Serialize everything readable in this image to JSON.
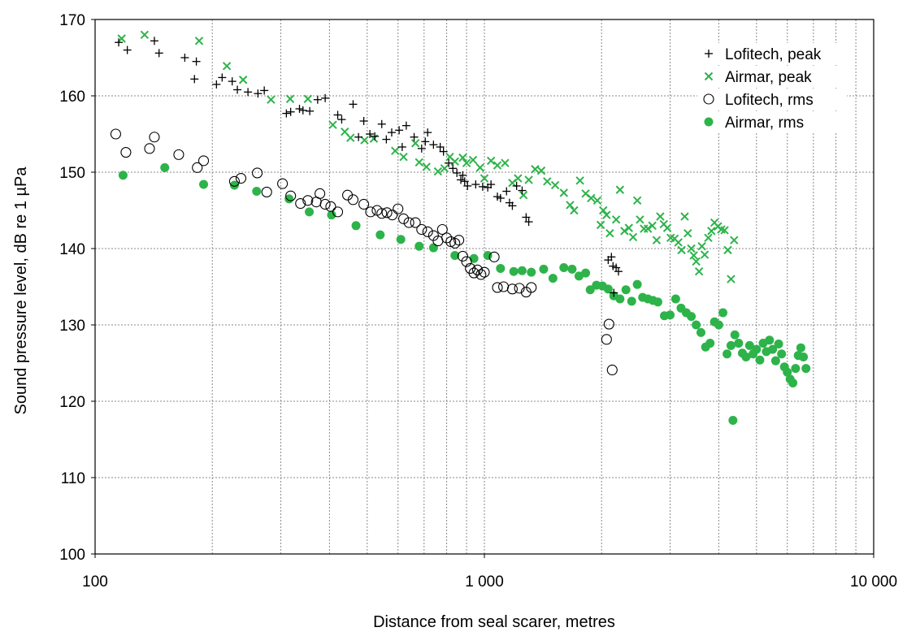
{
  "chart_data": {
    "type": "scatter",
    "xlabel": "Distance from seal scarer, metres",
    "ylabel": "Sound pressure level, dB re 1 µPa",
    "x_scale": "log",
    "xlim": [
      100,
      10000
    ],
    "ylim": [
      100,
      170
    ],
    "x_ticks": [
      100,
      1000,
      10000
    ],
    "x_tick_labels": [
      "100",
      "1 000",
      "10 000"
    ],
    "y_ticks": [
      100,
      110,
      120,
      130,
      140,
      150,
      160,
      170
    ],
    "y_tick_labels": [
      "100",
      "110",
      "120",
      "130",
      "140",
      "150",
      "160",
      "170"
    ],
    "grid": true,
    "legend_position": "top-right",
    "colors": {
      "green": "#2db34a",
      "black": "#000000"
    },
    "series": [
      {
        "name": "Lofitech, peak",
        "marker": "plus",
        "color": "#000000",
        "points": [
          [
            115,
            167
          ],
          [
            121,
            166
          ],
          [
            142,
            167.2
          ],
          [
            146,
            165.6
          ],
          [
            170,
            165
          ],
          [
            180,
            162.2
          ],
          [
            182,
            164.5
          ],
          [
            205,
            161.5
          ],
          [
            212,
            162.4
          ],
          [
            225,
            161.9
          ],
          [
            232,
            160.8
          ],
          [
            247,
            160.5
          ],
          [
            262,
            160.3
          ],
          [
            272,
            160.7
          ],
          [
            310,
            157.7
          ],
          [
            318,
            157.9
          ],
          [
            335,
            158.3
          ],
          [
            342,
            158.1
          ],
          [
            356,
            158.0
          ],
          [
            373,
            159.5
          ],
          [
            390,
            159.7
          ],
          [
            420,
            157.5
          ],
          [
            430,
            156.9
          ],
          [
            460,
            158.9
          ],
          [
            475,
            154.6
          ],
          [
            490,
            156.7
          ],
          [
            508,
            155.0
          ],
          [
            523,
            154.7
          ],
          [
            545,
            156.3
          ],
          [
            560,
            154.3
          ],
          [
            578,
            155.2
          ],
          [
            604,
            155.5
          ],
          [
            615,
            153.3
          ],
          [
            630,
            156.1
          ],
          [
            660,
            154.6
          ],
          [
            690,
            153.1
          ],
          [
            705,
            154.0
          ],
          [
            715,
            155.2
          ],
          [
            740,
            153.6
          ],
          [
            770,
            153.3
          ],
          [
            785,
            152.7
          ],
          [
            810,
            151.2
          ],
          [
            830,
            150.5
          ],
          [
            850,
            149.9
          ],
          [
            870,
            149.0
          ],
          [
            880,
            149.6
          ],
          [
            890,
            148.8
          ],
          [
            905,
            148.2
          ],
          [
            950,
            148.4
          ],
          [
            990,
            148.1
          ],
          [
            1020,
            148.0
          ],
          [
            1040,
            148.4
          ],
          [
            1080,
            146.8
          ],
          [
            1100,
            146.6
          ],
          [
            1140,
            147.5
          ],
          [
            1160,
            146.0
          ],
          [
            1180,
            145.6
          ],
          [
            1210,
            148.2
          ],
          [
            1250,
            147.6
          ],
          [
            1280,
            144.1
          ],
          [
            1300,
            143.5
          ],
          [
            2080,
            138.5
          ],
          [
            2120,
            138.9
          ],
          [
            2140,
            137.7
          ],
          [
            2180,
            137.5
          ],
          [
            2210,
            137.0
          ],
          [
            2150,
            134.2
          ]
        ]
      },
      {
        "name": "Airmar, peak",
        "marker": "x",
        "color": "#2db34a",
        "points": [
          [
            117,
            167.5
          ],
          [
            134,
            168
          ],
          [
            185,
            167.2
          ],
          [
            218,
            163.9
          ],
          [
            240,
            162.1
          ],
          [
            283,
            159.5
          ],
          [
            317,
            159.6
          ],
          [
            352,
            159.6
          ],
          [
            408,
            156.2
          ],
          [
            438,
            155.3
          ],
          [
            453,
            154.5
          ],
          [
            492,
            154.2
          ],
          [
            520,
            154.4
          ],
          [
            590,
            152.8
          ],
          [
            620,
            152.0
          ],
          [
            665,
            153.8
          ],
          [
            680,
            151.3
          ],
          [
            710,
            150.7
          ],
          [
            760,
            150.1
          ],
          [
            790,
            150.5
          ],
          [
            815,
            152.0
          ],
          [
            840,
            151.4
          ],
          [
            880,
            151.9
          ],
          [
            900,
            151.2
          ],
          [
            935,
            151.6
          ],
          [
            975,
            150.6
          ],
          [
            1000,
            149.2
          ],
          [
            1040,
            151.5
          ],
          [
            1080,
            150.9
          ],
          [
            1130,
            151.2
          ],
          [
            1180,
            148.6
          ],
          [
            1220,
            149.2
          ],
          [
            1260,
            147.0
          ],
          [
            1300,
            149.0
          ],
          [
            1350,
            150.4
          ],
          [
            1400,
            150.2
          ],
          [
            1450,
            148.8
          ],
          [
            1520,
            148.3
          ],
          [
            1600,
            147.3
          ],
          [
            1660,
            145.7
          ],
          [
            1700,
            145.0
          ],
          [
            1760,
            148.9
          ],
          [
            1820,
            147.2
          ],
          [
            1880,
            146.6
          ],
          [
            1950,
            146.3
          ],
          [
            1990,
            143.1
          ],
          [
            2020,
            145.0
          ],
          [
            2060,
            144.4
          ],
          [
            2100,
            142.0
          ],
          [
            2180,
            143.8
          ],
          [
            2230,
            147.7
          ],
          [
            2290,
            142.3
          ],
          [
            2350,
            142.7
          ],
          [
            2410,
            141.5
          ],
          [
            2470,
            146.3
          ],
          [
            2510,
            143.8
          ],
          [
            2570,
            142.6
          ],
          [
            2630,
            142.6
          ],
          [
            2700,
            143.0
          ],
          [
            2770,
            141.1
          ],
          [
            2830,
            144.2
          ],
          [
            2890,
            143.2
          ],
          [
            2950,
            142.7
          ],
          [
            3010,
            141.4
          ],
          [
            3080,
            141.3
          ],
          [
            3150,
            140.8
          ],
          [
            3210,
            139.8
          ],
          [
            3270,
            144.2
          ],
          [
            3330,
            142.0
          ],
          [
            3400,
            140.0
          ],
          [
            3450,
            139.1
          ],
          [
            3500,
            138.3
          ],
          [
            3560,
            137.0
          ],
          [
            3620,
            140.3
          ],
          [
            3680,
            139.2
          ],
          [
            3760,
            141.4
          ],
          [
            3830,
            142.3
          ],
          [
            3900,
            143.4
          ],
          [
            3980,
            142.9
          ],
          [
            4060,
            142.5
          ],
          [
            4140,
            142.4
          ],
          [
            4220,
            139.8
          ],
          [
            4300,
            136.0
          ],
          [
            4380,
            141.1
          ]
        ]
      },
      {
        "name": "Lofitech, rms",
        "marker": "circle-open",
        "color": "#000000",
        "points": [
          [
            113,
            155
          ],
          [
            120,
            152.6
          ],
          [
            138,
            153.1
          ],
          [
            142,
            154.6
          ],
          [
            164,
            152.3
          ],
          [
            183,
            150.6
          ],
          [
            190,
            151.5
          ],
          [
            228,
            148.8
          ],
          [
            237,
            149.2
          ],
          [
            261,
            149.9
          ],
          [
            276,
            147.4
          ],
          [
            303,
            148.5
          ],
          [
            318,
            146.9
          ],
          [
            337,
            145.9
          ],
          [
            352,
            146.3
          ],
          [
            370,
            146.1
          ],
          [
            378,
            147.2
          ],
          [
            390,
            145.8
          ],
          [
            403,
            145.5
          ],
          [
            420,
            144.8
          ],
          [
            445,
            147
          ],
          [
            460,
            146.4
          ],
          [
            490,
            145.8
          ],
          [
            510,
            144.8
          ],
          [
            530,
            145
          ],
          [
            545,
            144.6
          ],
          [
            562,
            144.7
          ],
          [
            580,
            144.4
          ],
          [
            600,
            145.2
          ],
          [
            620,
            143.9
          ],
          [
            640,
            143.4
          ],
          [
            665,
            143.4
          ],
          [
            690,
            142.5
          ],
          [
            715,
            142.2
          ],
          [
            740,
            141.7
          ],
          [
            760,
            141.0
          ],
          [
            780,
            142.5
          ],
          [
            800,
            141.4
          ],
          [
            820,
            140.9
          ],
          [
            840,
            140.7
          ],
          [
            860,
            141.1
          ],
          [
            880,
            139.0
          ],
          [
            900,
            138.3
          ],
          [
            920,
            137.4
          ],
          [
            940,
            136.8
          ],
          [
            960,
            137.2
          ],
          [
            980,
            136.6
          ],
          [
            1000,
            136.9
          ],
          [
            1060,
            138.9
          ],
          [
            1080,
            134.9
          ],
          [
            1120,
            135.0
          ],
          [
            1180,
            134.7
          ],
          [
            1230,
            134.8
          ],
          [
            1280,
            134.3
          ],
          [
            1320,
            134.9
          ],
          [
            2060,
            128.1
          ],
          [
            2090,
            130.1
          ],
          [
            2130,
            124.1
          ]
        ]
      },
      {
        "name": "Airmar, rms",
        "marker": "circle-filled",
        "color": "#2db34a",
        "points": [
          [
            118,
            149.6
          ],
          [
            151,
            150.6
          ],
          [
            190,
            148.4
          ],
          [
            228,
            148.3
          ],
          [
            260,
            147.5
          ],
          [
            315,
            146.5
          ],
          [
            355,
            144.8
          ],
          [
            405,
            144.4
          ],
          [
            468,
            143.0
          ],
          [
            540,
            141.8
          ],
          [
            610,
            141.2
          ],
          [
            680,
            140.3
          ],
          [
            740,
            140.1
          ],
          [
            840,
            139.1
          ],
          [
            940,
            138.7
          ],
          [
            1020,
            139.1
          ],
          [
            1100,
            137.4
          ],
          [
            1190,
            137.0
          ],
          [
            1250,
            137.1
          ],
          [
            1320,
            136.9
          ],
          [
            1420,
            137.3
          ],
          [
            1500,
            136.1
          ],
          [
            1600,
            137.5
          ],
          [
            1680,
            137.3
          ],
          [
            1750,
            136.4
          ],
          [
            1820,
            136.8
          ],
          [
            1870,
            134.6
          ],
          [
            1940,
            135.2
          ],
          [
            2010,
            135.1
          ],
          [
            2080,
            134.7
          ],
          [
            2150,
            133.8
          ],
          [
            2230,
            133.4
          ],
          [
            2310,
            134.6
          ],
          [
            2390,
            133.1
          ],
          [
            2470,
            135.3
          ],
          [
            2550,
            133.6
          ],
          [
            2630,
            133.4
          ],
          [
            2710,
            133.2
          ],
          [
            2790,
            133.0
          ],
          [
            2900,
            131.2
          ],
          [
            3000,
            131.3
          ],
          [
            3100,
            133.4
          ],
          [
            3200,
            132.2
          ],
          [
            3300,
            131.6
          ],
          [
            3400,
            131.1
          ],
          [
            3500,
            130.0
          ],
          [
            3600,
            129.0
          ],
          [
            3700,
            127.1
          ],
          [
            3800,
            127.6
          ],
          [
            3900,
            130.4
          ],
          [
            4000,
            130.0
          ],
          [
            4100,
            131.6
          ],
          [
            4200,
            126.2
          ],
          [
            4300,
            127.3
          ],
          [
            4400,
            128.7
          ],
          [
            4500,
            127.6
          ],
          [
            4600,
            126.3
          ],
          [
            4700,
            125.8
          ],
          [
            4800,
            127.3
          ],
          [
            4900,
            126.2
          ],
          [
            5000,
            126.8
          ],
          [
            5100,
            125.4
          ],
          [
            5200,
            127.6
          ],
          [
            5300,
            126.5
          ],
          [
            5400,
            128.0
          ],
          [
            5500,
            126.8
          ],
          [
            5600,
            125.3
          ],
          [
            5700,
            127.5
          ],
          [
            5800,
            126.2
          ],
          [
            5900,
            124.5
          ],
          [
            6000,
            123.8
          ],
          [
            6100,
            122.9
          ],
          [
            6200,
            122.4
          ],
          [
            6300,
            124.3
          ],
          [
            6400,
            126.0
          ],
          [
            6500,
            127.0
          ],
          [
            6600,
            125.8
          ],
          [
            6700,
            124.3
          ],
          [
            4350,
            117.5
          ]
        ]
      }
    ]
  }
}
